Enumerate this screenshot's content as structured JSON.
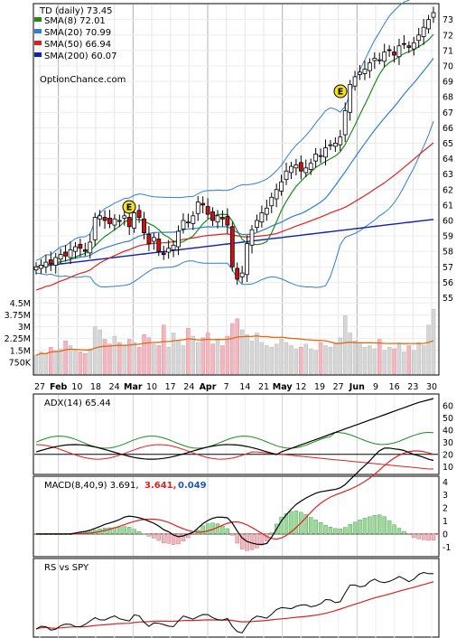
{
  "chart_data": {
    "type": "candlestick",
    "ticker_label": "TD (daily) 73.45",
    "watermark": "OptionChance.com",
    "price_legend": [
      {
        "label": "SMA(8) 72.01",
        "color": "#1f8a1f"
      },
      {
        "label": "SMA(20) 70.99",
        "color": "#2f7fd0"
      },
      {
        "label": "SMA(50) 66.94",
        "color": "#e02020"
      },
      {
        "label": "SMA(200) 60.07",
        "color": "#1020b0"
      }
    ],
    "price_ticks": [
      "55",
      "56",
      "57",
      "58",
      "59",
      "60",
      "61",
      "62",
      "63",
      "64",
      "65",
      "66",
      "67",
      "68",
      "69",
      "70",
      "71",
      "72",
      "73"
    ],
    "price_range": [
      54.5,
      73.8
    ],
    "volume_ticks": [
      "4.5M",
      "3.75M",
      "3M",
      "2.25M",
      "1.5M",
      "750K"
    ],
    "volume_range": [
      0,
      4800000
    ],
    "x_ticks": [
      "27",
      "Feb",
      "10",
      "18",
      "24",
      "Mar",
      "10",
      "17",
      "24",
      "Apr",
      "7",
      "14",
      "21",
      "May",
      "12",
      "19",
      "27",
      "Jun",
      "9",
      "16",
      "23",
      "30"
    ],
    "earnings_markers": [
      "E",
      "E"
    ],
    "adx": {
      "label": "ADX(14) 65.44",
      "ticks": [
        "60",
        "50",
        "40",
        "30",
        "20",
        "10"
      ],
      "range": [
        5,
        68
      ]
    },
    "macd": {
      "label": "MACD(8,40,9) 3.691,",
      "signal_label": "3.641,",
      "hist_label": "0.049",
      "ticks": [
        "4",
        "3",
        "2",
        "1",
        "0",
        "-1"
      ],
      "range": [
        -1.6,
        4.3
      ]
    },
    "rs": {
      "label": "RS vs SPY"
    },
    "closes": [
      57.0,
      57.1,
      57.3,
      57.2,
      57.6,
      57.8,
      57.7,
      58.1,
      58.3,
      58.2,
      58.0,
      58.6,
      60.2,
      60.3,
      60.0,
      59.8,
      60.1,
      60.0,
      60.3,
      59.6,
      60.5,
      60.2,
      59.2,
      58.5,
      58.9,
      58.0,
      57.8,
      58.2,
      58.4,
      59.3,
      60.0,
      59.9,
      60.3,
      61.2,
      61.0,
      60.4,
      60.0,
      60.3,
      60.1,
      59.7,
      57.0,
      56.2,
      56.6,
      58.5,
      59.4,
      60.0,
      60.5,
      60.8,
      61.5,
      62.0,
      62.5,
      63.2,
      63.5,
      63.6,
      63.2,
      63.4,
      63.7,
      64.3,
      64.2,
      64.7,
      64.9,
      65.0,
      65.4,
      67.1,
      68.8,
      69.3,
      69.6,
      69.8,
      70.2,
      70.5,
      70.4,
      70.9,
      71.0,
      70.7,
      71.3,
      71.4,
      71.2,
      71.5,
      72.0,
      72.5,
      73.0,
      73.45
    ],
    "volumes": [
      1200000,
      1400000,
      1300000,
      1700000,
      1500000,
      1600000,
      2100000,
      1800000,
      1500000,
      1400000,
      1300000,
      1600000,
      3000000,
      2800000,
      2200000,
      1900000,
      2400000,
      2000000,
      1800000,
      2200000,
      2000000,
      1700000,
      2500000,
      2300000,
      1900000,
      1800000,
      3100000,
      1700000,
      2600000,
      2100000,
      1800000,
      2900000,
      2400000,
      2000000,
      2300000,
      2600000,
      1900000,
      2200000,
      1800000,
      2400000,
      3200000,
      3500000,
      2800000,
      2500000,
      2100000,
      2600000,
      2000000,
      1800000,
      1700000,
      1900000,
      2200000,
      2000000,
      1800000,
      1600000,
      1700000,
      1900000,
      1600000,
      1500000,
      2000000,
      1800000,
      1700000,
      1900000,
      2300000,
      3700000,
      2600000,
      2100000,
      1900000,
      1700000,
      1800000,
      1600000,
      2200000,
      1500000,
      1700000,
      1600000,
      1900000,
      1400000,
      1800000,
      1500000,
      2000000,
      1800000,
      3100000,
      4100000
    ]
  }
}
